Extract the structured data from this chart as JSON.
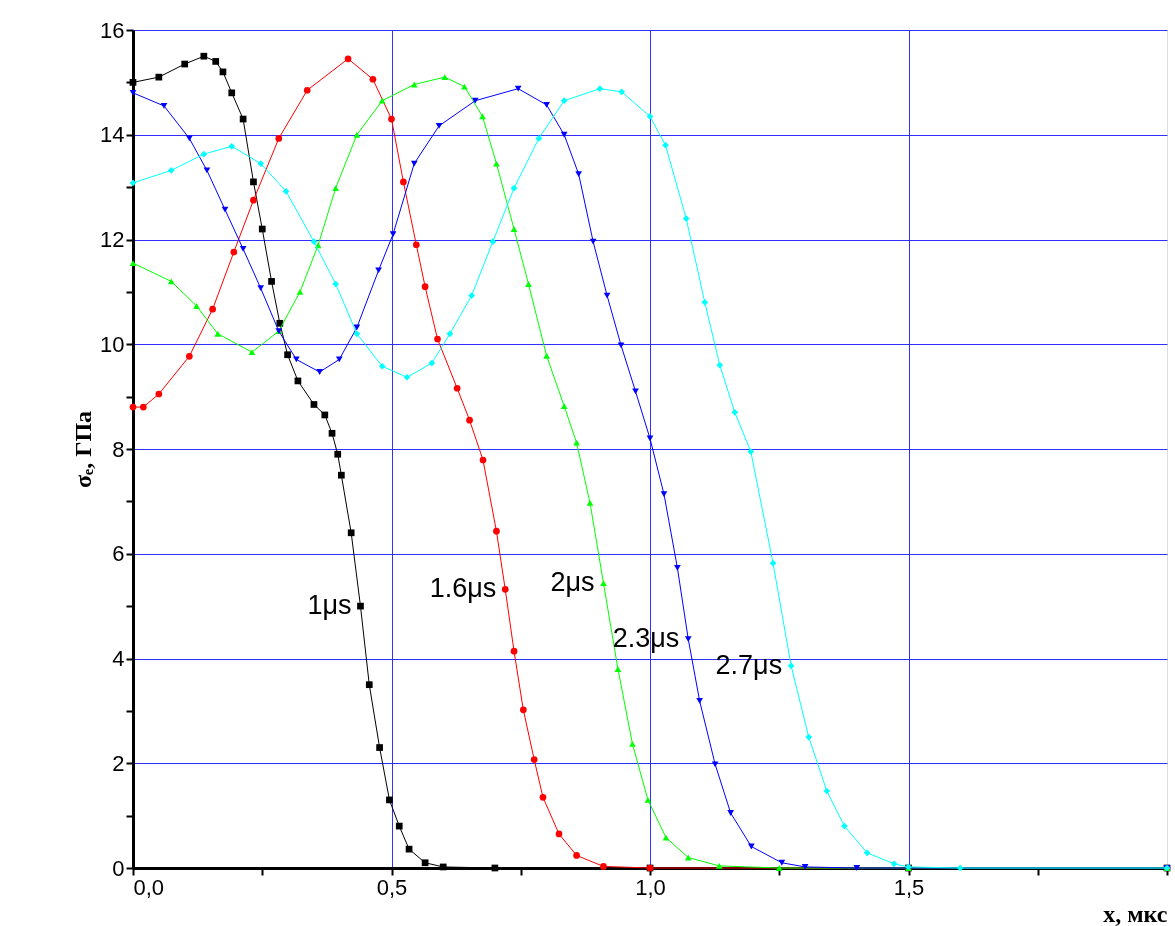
{
  "chart_data": {
    "type": "line",
    "xlabel": "x, мкс",
    "ylabel": "σₑ, ГПа",
    "xlim": [
      0,
      2
    ],
    "ylim": [
      0,
      16
    ],
    "xticks": [
      {
        "value": 0,
        "label": "0,0"
      },
      {
        "value": 0.25,
        "label": null
      },
      {
        "value": 0.5,
        "label": "0,5"
      },
      {
        "value": 0.75,
        "label": null
      },
      {
        "value": 1,
        "label": "1,0"
      },
      {
        "value": 1.25,
        "label": null
      },
      {
        "value": 1.5,
        "label": "1,5"
      },
      {
        "value": 1.75,
        "label": null
      },
      {
        "value": 2,
        "label": null
      }
    ],
    "yticks": [
      0,
      {
        "value": 1,
        "label": null
      },
      2,
      {
        "value": 3,
        "label": null
      },
      4,
      {
        "value": 5,
        "label": null
      },
      6,
      {
        "value": 7,
        "label": null
      },
      8,
      {
        "value": 9,
        "label": null
      },
      10,
      {
        "value": 11,
        "label": null
      },
      12,
      {
        "value": 13,
        "label": null
      },
      14,
      {
        "value": 15,
        "label": null
      },
      16
    ],
    "grid": true,
    "legend": false,
    "line_style": "solid",
    "series": [
      {
        "name": "1μs",
        "color": "#000000",
        "marker": "square",
        "x": [
          0,
          0.05,
          0.1,
          0.137,
          0.16,
          0.174,
          0.191,
          0.213,
          0.233,
          0.25,
          0.268,
          0.284,
          0.299,
          0.319,
          0.35,
          0.371,
          0.385,
          0.396,
          0.403,
          0.422,
          0.44,
          0.457,
          0.477,
          0.496,
          0.515,
          0.534,
          0.565,
          0.6,
          0.7,
          1.0,
          1.5,
          2.0
        ],
        "values": [
          15.0,
          15.1,
          15.35,
          15.5,
          15.4,
          15.2,
          14.8,
          14.3,
          13.1,
          12.2,
          11.2,
          10.4,
          9.8,
          9.3,
          8.85,
          8.65,
          8.3,
          7.9,
          7.5,
          6.4,
          5.0,
          3.5,
          2.3,
          1.3,
          0.8,
          0.36,
          0.1,
          0.02,
          0,
          0,
          0,
          0
        ]
      },
      {
        "name": "1.6μs",
        "color": "#ff0000",
        "marker": "circle",
        "x": [
          0,
          0.02,
          0.05,
          0.109,
          0.154,
          0.195,
          0.233,
          0.282,
          0.337,
          0.416,
          0.464,
          0.5,
          0.523,
          0.548,
          0.565,
          0.589,
          0.627,
          0.651,
          0.677,
          0.703,
          0.72,
          0.737,
          0.755,
          0.776,
          0.793,
          0.824,
          0.858,
          0.91,
          1.0,
          1.5,
          2.0
        ],
        "values": [
          8.8,
          8.8,
          9.05,
          9.77,
          10.67,
          11.76,
          12.75,
          13.93,
          14.85,
          15.45,
          15.06,
          14.3,
          13.1,
          11.9,
          11.1,
          10.1,
          9.16,
          8.55,
          7.79,
          6.43,
          5.32,
          4.14,
          3.02,
          2.07,
          1.35,
          0.65,
          0.24,
          0.03,
          0,
          0,
          0
        ]
      },
      {
        "name": "2μs",
        "color": "#00ff00",
        "marker": "triangle",
        "x": [
          0,
          0.074,
          0.123,
          0.164,
          0.23,
          0.282,
          0.323,
          0.358,
          0.392,
          0.433,
          0.482,
          0.544,
          0.603,
          0.641,
          0.676,
          0.703,
          0.737,
          0.765,
          0.8,
          0.834,
          0.858,
          0.884,
          0.91,
          0.938,
          0.966,
          0.996,
          1.031,
          1.074,
          1.134,
          1.25,
          1.5,
          2.0
        ],
        "values": [
          11.55,
          11.2,
          10.73,
          10.2,
          9.85,
          10.25,
          11.0,
          11.89,
          12.98,
          14.0,
          14.65,
          14.96,
          15.1,
          14.92,
          14.35,
          13.45,
          12.2,
          11.15,
          9.78,
          8.82,
          8.12,
          6.97,
          5.44,
          3.8,
          2.37,
          1.3,
          0.58,
          0.2,
          0.04,
          0,
          0,
          0
        ]
      },
      {
        "name": "2.3μs",
        "color": "#0000ff",
        "marker": "triangle-down",
        "x": [
          0,
          0.06,
          0.109,
          0.143,
          0.178,
          0.213,
          0.247,
          0.282,
          0.316,
          0.361,
          0.399,
          0.433,
          0.475,
          0.503,
          0.544,
          0.592,
          0.662,
          0.745,
          0.8,
          0.834,
          0.862,
          0.89,
          0.917,
          0.944,
          0.972,
          1.0,
          1.027,
          1.053,
          1.074,
          1.096,
          1.126,
          1.156,
          1.196,
          1.255,
          1.3,
          1.4,
          2.0
        ],
        "values": [
          14.8,
          14.55,
          13.93,
          13.32,
          12.57,
          11.82,
          11.07,
          10.25,
          9.71,
          9.47,
          9.71,
          10.32,
          11.41,
          12.1,
          13.45,
          14.17,
          14.65,
          14.88,
          14.57,
          14.0,
          13.25,
          11.96,
          10.93,
          9.98,
          9.1,
          8.2,
          7.14,
          5.73,
          4.37,
          3.19,
          1.98,
          1.05,
          0.41,
          0.1,
          0.02,
          0,
          0
        ]
      },
      {
        "name": "2.7μs",
        "color": "#00ffff",
        "marker": "diamond",
        "x": [
          0,
          0.074,
          0.137,
          0.191,
          0.247,
          0.296,
          0.35,
          0.392,
          0.433,
          0.482,
          0.53,
          0.578,
          0.613,
          0.655,
          0.696,
          0.737,
          0.785,
          0.834,
          0.903,
          0.945,
          1.0,
          1.03,
          1.07,
          1.106,
          1.135,
          1.164,
          1.195,
          1.238,
          1.273,
          1.307,
          1.342,
          1.376,
          1.42,
          1.472,
          1.5,
          1.6,
          2.0
        ],
        "values": [
          13.08,
          13.32,
          13.63,
          13.78,
          13.45,
          12.92,
          11.96,
          11.15,
          10.2,
          9.58,
          9.37,
          9.64,
          10.2,
          10.93,
          11.96,
          12.98,
          13.93,
          14.65,
          14.88,
          14.82,
          14.35,
          13.8,
          12.4,
          10.8,
          9.6,
          8.7,
          7.95,
          5.82,
          3.86,
          2.5,
          1.47,
          0.8,
          0.29,
          0.08,
          0.02,
          0,
          0
        ]
      }
    ]
  }
}
